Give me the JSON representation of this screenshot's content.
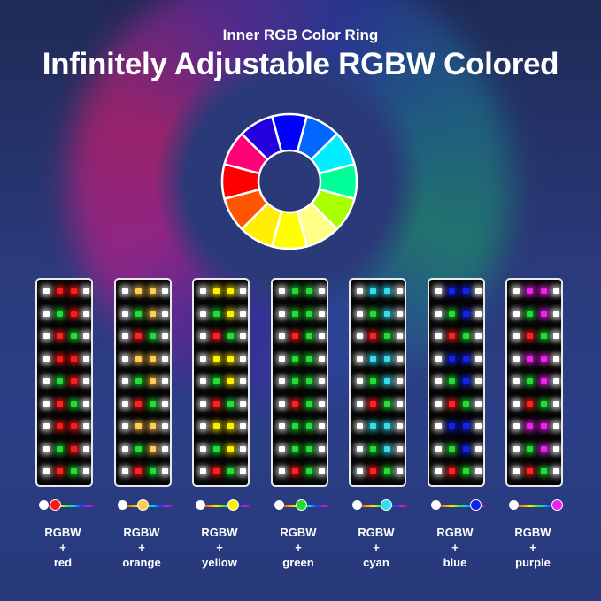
{
  "header": {
    "subtitle": "Inner RGB Color Ring",
    "title": "Infinitely Adjustable RGBW Colored"
  },
  "color_ring": {
    "segments": [
      "#0000ff",
      "#0066ff",
      "#00eeff",
      "#00ff99",
      "#aaff00",
      "#ffff88",
      "#ffff00",
      "#ffee00",
      "#ff5500",
      "#ff0000",
      "#ff0077",
      "#2200dd"
    ]
  },
  "variants": [
    {
      "line1": "RGBW",
      "line2": "+",
      "line3": "red",
      "color": "#ff1a1a"
    },
    {
      "line1": "RGBW",
      "line2": "+",
      "line3": "orange",
      "color": "#ffcc55"
    },
    {
      "line1": "RGBW",
      "line2": "+",
      "line3": "yellow",
      "color": "#ffee00"
    },
    {
      "line1": "RGBW",
      "line2": "+",
      "line3": "green",
      "color": "#22dd33"
    },
    {
      "line1": "RGBW",
      "line2": "+",
      "line3": "cyan",
      "color": "#33ddee"
    },
    {
      "line1": "RGBW",
      "line2": "+",
      "line3": "blue",
      "color": "#1122ee"
    },
    {
      "line1": "RGBW",
      "line2": "+",
      "line3": "purple",
      "color": "#ee22ee"
    }
  ]
}
